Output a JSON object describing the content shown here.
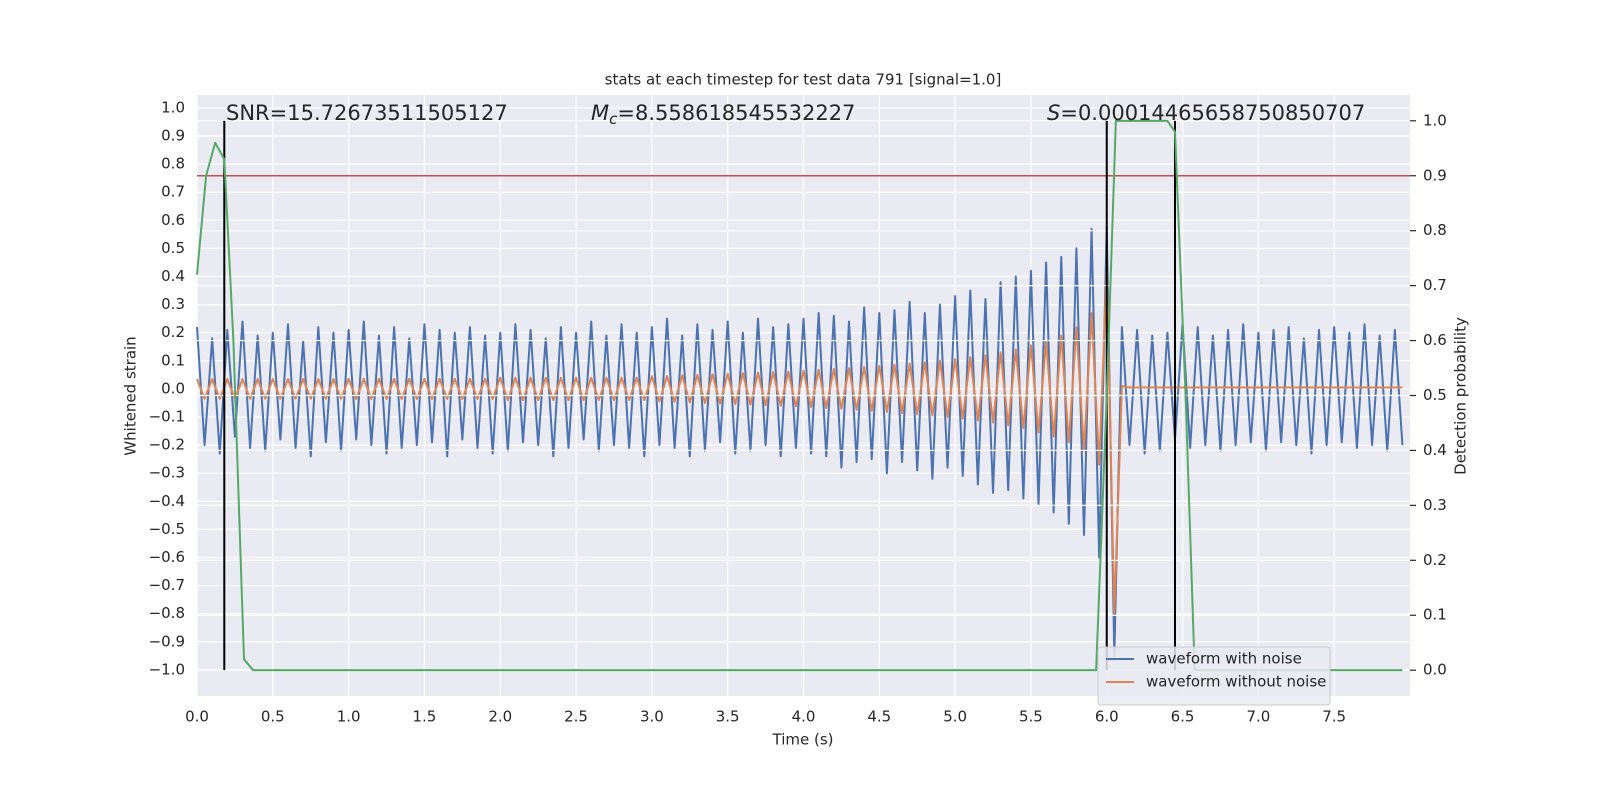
{
  "chart_data": {
    "type": "line",
    "title": "stats at each timestep for test data 791 [signal=1.0]",
    "xlabel": "Time (s)",
    "ylabel": "Whitened strain",
    "y2label": "Detection probability",
    "annotations": [
      {
        "text": "SNR=15.72673511505127"
      },
      {
        "symbol": "M",
        "subscript": "c",
        "text": "=8.558618545532227"
      },
      {
        "symbol": "S",
        "text": "=0.00014465658750850707"
      }
    ],
    "x": [
      0,
      0.05,
      0.1,
      0.15,
      0.2,
      0.25,
      0.3,
      0.35,
      0.4,
      0.45,
      0.5,
      0.55,
      0.6,
      0.65,
      0.7,
      0.75,
      0.8,
      0.85,
      0.9,
      0.95,
      1,
      1.05,
      1.1,
      1.15,
      1.2,
      1.25,
      1.3,
      1.35,
      1.4,
      1.45,
      1.5,
      1.55,
      1.6,
      1.65,
      1.7,
      1.75,
      1.8,
      1.85,
      1.9,
      1.95,
      2,
      2.05,
      2.1,
      2.15,
      2.2,
      2.25,
      2.3,
      2.35,
      2.4,
      2.45,
      2.5,
      2.55,
      2.6,
      2.65,
      2.7,
      2.75,
      2.8,
      2.85,
      2.9,
      2.95,
      3,
      3.05,
      3.1,
      3.15,
      3.2,
      3.25,
      3.3,
      3.35,
      3.4,
      3.45,
      3.5,
      3.55,
      3.6,
      3.65,
      3.7,
      3.75,
      3.8,
      3.85,
      3.9,
      3.95,
      4,
      4.05,
      4.1,
      4.15,
      4.2,
      4.25,
      4.3,
      4.35,
      4.4,
      4.45,
      4.5,
      4.55,
      4.6,
      4.65,
      4.7,
      4.75,
      4.8,
      4.85,
      4.9,
      4.95,
      5,
      5.05,
      5.1,
      5.15,
      5.2,
      5.25,
      5.3,
      5.35,
      5.4,
      5.45,
      5.5,
      5.55,
      5.6,
      5.65,
      5.7,
      5.75,
      5.8,
      5.85,
      5.9,
      5.95,
      6,
      6.05,
      6.1,
      6.15,
      6.2,
      6.25,
      6.3,
      6.35,
      6.4,
      6.45,
      6.5,
      6.55,
      6.6,
      6.65,
      6.7,
      6.75,
      6.8,
      6.85,
      6.9,
      6.95,
      7,
      7.05,
      7.1,
      7.15,
      7.2,
      7.25,
      7.3,
      7.35,
      7.4,
      7.45,
      7.5,
      7.55,
      7.6,
      7.65,
      7.7,
      7.75,
      7.8,
      7.85,
      7.9,
      7.95
    ],
    "series": [
      {
        "name": "waveform with noise",
        "color": "#4c72b0",
        "values": [
          0.22,
          -0.2,
          0.18,
          -0.23,
          0.21,
          -0.17,
          0.24,
          -0.21,
          0.19,
          -0.22,
          0.2,
          -0.18,
          0.23,
          -0.21,
          0.17,
          -0.24,
          0.22,
          -0.19,
          0.2,
          -0.22,
          0.21,
          -0.18,
          0.24,
          -0.2,
          0.19,
          -0.23,
          0.22,
          -0.21,
          0.18,
          -0.2,
          0.23,
          -0.19,
          0.21,
          -0.24,
          0.2,
          -0.18,
          0.22,
          -0.21,
          0.19,
          -0.23,
          0.2,
          -0.22,
          0.23,
          -0.19,
          0.21,
          -0.2,
          0.18,
          -0.24,
          0.22,
          -0.21,
          0.2,
          -0.18,
          0.24,
          -0.22,
          0.19,
          -0.2,
          0.23,
          -0.21,
          0.2,
          -0.24,
          0.22,
          -0.2,
          0.25,
          -0.21,
          0.19,
          -0.24,
          0.23,
          -0.22,
          0.21,
          -0.19,
          0.24,
          -0.23,
          0.2,
          -0.22,
          0.25,
          -0.2,
          0.22,
          -0.24,
          0.23,
          -0.21,
          0.25,
          -0.23,
          0.27,
          -0.24,
          0.26,
          -0.28,
          0.24,
          -0.26,
          0.29,
          -0.25,
          0.27,
          -0.3,
          0.28,
          -0.26,
          0.31,
          -0.29,
          0.27,
          -0.32,
          0.3,
          -0.28,
          0.33,
          -0.31,
          0.35,
          -0.34,
          0.32,
          -0.37,
          0.38,
          -0.36,
          0.4,
          -0.39,
          0.42,
          -0.41,
          0.45,
          -0.44,
          0.47,
          -0.48,
          0.5,
          -0.52,
          0.57,
          -0.6,
          0.58,
          -0.95,
          0.22,
          -0.2,
          0.21,
          -0.23,
          0.19,
          -0.22,
          0.2,
          -0.18,
          0.23,
          -0.21,
          0.22,
          -0.2,
          0.19,
          -0.22,
          0.21,
          -0.2,
          0.23,
          -0.19,
          0.2,
          -0.22,
          0.21,
          -0.19,
          0.22,
          -0.2,
          0.18,
          -0.23,
          0.21,
          -0.2,
          0.22,
          -0.19,
          0.2,
          -0.21,
          0.23,
          -0.2,
          0.19,
          -0.22,
          0.21,
          -0.2
        ]
      },
      {
        "name": "waveform without noise",
        "color": "#dd8452",
        "values": [
          0.035,
          -0.035,
          0.035,
          -0.035,
          0.035,
          -0.035,
          0.035,
          -0.035,
          0.035,
          -0.035,
          0.035,
          -0.035,
          0.035,
          -0.035,
          0.035,
          -0.035,
          0.035,
          -0.035,
          0.035,
          -0.035,
          0.036,
          -0.036,
          0.036,
          -0.036,
          0.036,
          -0.036,
          0.036,
          -0.036,
          0.036,
          -0.036,
          0.036,
          -0.036,
          0.036,
          -0.036,
          0.036,
          -0.036,
          0.036,
          -0.036,
          0.036,
          -0.036,
          0.04,
          -0.04,
          0.04,
          -0.04,
          0.04,
          -0.04,
          0.04,
          -0.04,
          0.04,
          -0.04,
          0.04,
          -0.04,
          0.04,
          -0.04,
          0.04,
          -0.04,
          0.04,
          -0.04,
          0.04,
          -0.04,
          0.045,
          -0.045,
          0.046,
          -0.046,
          0.048,
          -0.048,
          0.05,
          -0.05,
          0.052,
          -0.052,
          0.054,
          -0.054,
          0.056,
          -0.056,
          0.058,
          -0.058,
          0.06,
          -0.06,
          0.062,
          -0.062,
          0.065,
          -0.065,
          0.068,
          -0.068,
          0.071,
          -0.071,
          0.074,
          -0.074,
          0.078,
          -0.078,
          0.082,
          -0.082,
          0.086,
          -0.086,
          0.09,
          -0.09,
          0.095,
          -0.095,
          0.1,
          -0.1,
          0.106,
          -0.106,
          0.113,
          -0.113,
          0.12,
          -0.12,
          0.13,
          -0.13,
          0.14,
          -0.14,
          0.155,
          -0.155,
          0.17,
          -0.17,
          0.19,
          -0.19,
          0.22,
          -0.22,
          0.27,
          -0.27,
          0.42,
          -0.8,
          0.01,
          0.005,
          0.005,
          0.005,
          0.005,
          0.005,
          0.005,
          0.005,
          0.005,
          0.005,
          0.005,
          0.005,
          0.005,
          0.005,
          0.005,
          0.005,
          0.005,
          0.005,
          0.005,
          0.005,
          0.005,
          0.005,
          0.005,
          0.005,
          0.005,
          0.005,
          0.005,
          0.005,
          0.005,
          0.005,
          0.005,
          0.005,
          0.005,
          0.005,
          0.005,
          0.005,
          0.005,
          0.005
        ]
      },
      {
        "axis": "y2",
        "color": "#55a868",
        "x": [
          0,
          0.06,
          0.12,
          0.18,
          0.24,
          0.31,
          0.37,
          5.93,
          6.0,
          6.06,
          6.12,
          6.4,
          6.45,
          6.52,
          6.58,
          7.95
        ],
        "values": [
          0.72,
          0.9,
          0.96,
          0.93,
          0.6,
          0.02,
          0,
          0,
          0.5,
          1.0,
          1.0,
          1.0,
          0.98,
          0.5,
          0,
          0
        ]
      }
    ],
    "vlines": {
      "x": [
        0.18,
        6.0,
        6.45
      ],
      "ymin": 0,
      "ymax": 1,
      "color": "#000000"
    },
    "threshold": {
      "y2": 0.9,
      "color": "#c44e52"
    },
    "xlim": [
      0,
      8
    ],
    "ylim": [
      -1.093,
      1.046
    ],
    "y2lim": [
      -0.047,
      1.047
    ],
    "xticks": [
      {
        "value": 0,
        "label": "0.0"
      },
      {
        "value": 0.5,
        "label": "0.5"
      },
      {
        "value": 1,
        "label": "1.0"
      },
      {
        "value": 1.5,
        "label": "1.5"
      },
      {
        "value": 2,
        "label": "2.0"
      },
      {
        "value": 2.5,
        "label": "2.5"
      },
      {
        "value": 3,
        "label": "3.0"
      },
      {
        "value": 3.5,
        "label": "3.5"
      },
      {
        "value": 4,
        "label": "4.0"
      },
      {
        "value": 4.5,
        "label": "4.5"
      },
      {
        "value": 5,
        "label": "5.0"
      },
      {
        "value": 5.5,
        "label": "5.5"
      },
      {
        "value": 6,
        "label": "6.0"
      },
      {
        "value": 6.5,
        "label": "6.5"
      },
      {
        "value": 7,
        "label": "7.0"
      },
      {
        "value": 7.5,
        "label": "7.5"
      }
    ],
    "yticks": [
      {
        "value": -1,
        "label": "−1.0"
      },
      {
        "value": -0.9,
        "label": "−0.9"
      },
      {
        "value": -0.8,
        "label": "−0.8"
      },
      {
        "value": -0.7,
        "label": "−0.7"
      },
      {
        "value": -0.6,
        "label": "−0.6"
      },
      {
        "value": -0.5,
        "label": "−0.5"
      },
      {
        "value": -0.4,
        "label": "−0.4"
      },
      {
        "value": -0.3,
        "label": "−0.3"
      },
      {
        "value": -0.2,
        "label": "−0.2"
      },
      {
        "value": -0.1,
        "label": "−0.1"
      },
      {
        "value": 0,
        "label": "0.0"
      },
      {
        "value": 0.1,
        "label": "0.1"
      },
      {
        "value": 0.2,
        "label": "0.2"
      },
      {
        "value": 0.3,
        "label": "0.3"
      },
      {
        "value": 0.4,
        "label": "0.4"
      },
      {
        "value": 0.5,
        "label": "0.5"
      },
      {
        "value": 0.6,
        "label": "0.6"
      },
      {
        "value": 0.7,
        "label": "0.7"
      },
      {
        "value": 0.8,
        "label": "0.8"
      },
      {
        "value": 0.9,
        "label": "0.9"
      },
      {
        "value": 1,
        "label": "1.0"
      }
    ],
    "y2ticks": [
      {
        "value": 0,
        "label": "0.0"
      },
      {
        "value": 0.1,
        "label": "0.1"
      },
      {
        "value": 0.2,
        "label": "0.2"
      },
      {
        "value": 0.3,
        "label": "0.3"
      },
      {
        "value": 0.4,
        "label": "0.4"
      },
      {
        "value": 0.5,
        "label": "0.5"
      },
      {
        "value": 0.6,
        "label": "0.6"
      },
      {
        "value": 0.7,
        "label": "0.7"
      },
      {
        "value": 0.8,
        "label": "0.8"
      },
      {
        "value": 0.9,
        "label": "0.9"
      },
      {
        "value": 1,
        "label": "1.0"
      }
    ],
    "grid": true,
    "grid2": true,
    "legend": "lower right"
  }
}
